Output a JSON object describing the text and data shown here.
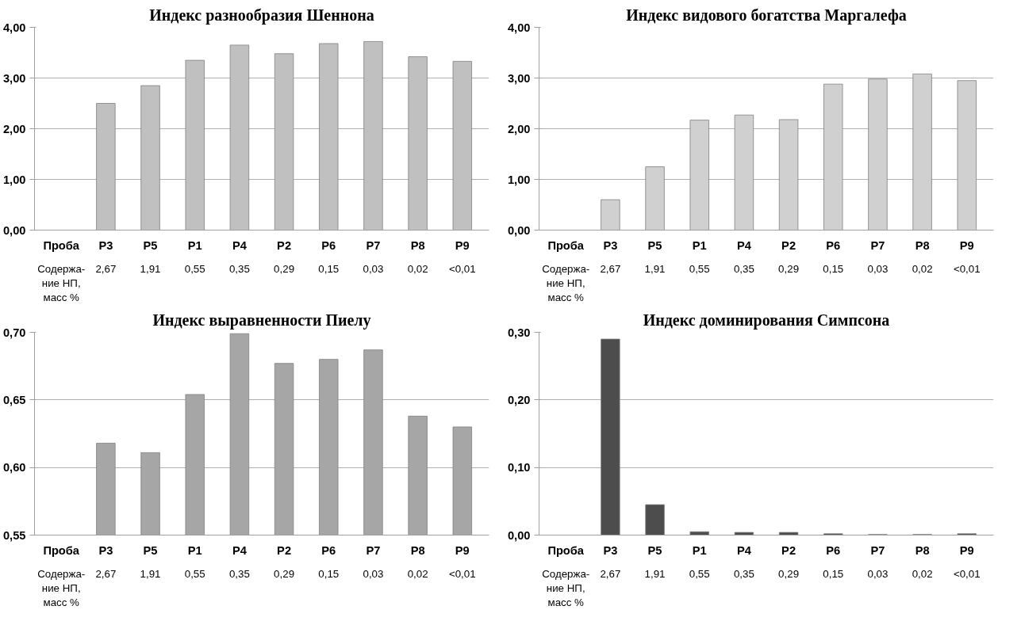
{
  "chart_data": [
    {
      "type": "bar",
      "title": "Индекс разнообразия Шеннона",
      "xlabel": "Проба",
      "categories": [
        "P3",
        "P5",
        "P1",
        "P4",
        "P2",
        "P6",
        "P7",
        "P8",
        "P9"
      ],
      "color": "#c0c0c0",
      "values": [
        2.5,
        2.85,
        3.35,
        3.65,
        3.48,
        3.68,
        3.72,
        3.42,
        3.33
      ],
      "ylim": [
        0,
        4
      ],
      "yticks": [
        {
          "value": 0,
          "label": "0,00"
        },
        {
          "value": 1,
          "label": "1,00"
        },
        {
          "value": 2,
          "label": "2,00"
        },
        {
          "value": 3,
          "label": "3,00"
        },
        {
          "value": 4,
          "label": "4,00"
        }
      ],
      "grid": "y",
      "legend": false,
      "annotations": [
        "Содержа-\nние НП,\nмасс %",
        "2,67",
        "1,91",
        "0,55",
        "0,35",
        "0,29",
        "0,15",
        "0,03",
        "0,02",
        "<0,01"
      ]
    },
    {
      "type": "bar",
      "title": "Индекс видового богатства Маргалефа",
      "xlabel": "Проба",
      "categories": [
        "P3",
        "P5",
        "P1",
        "P4",
        "P2",
        "P6",
        "P7",
        "P8",
        "P9"
      ],
      "color": "#d0d0d0",
      "values": [
        0.6,
        1.25,
        2.17,
        2.27,
        2.18,
        2.88,
        2.98,
        3.08,
        2.95
      ],
      "ylim": [
        0,
        4
      ],
      "yticks": [
        {
          "value": 0,
          "label": "0,00"
        },
        {
          "value": 1,
          "label": "1,00"
        },
        {
          "value": 2,
          "label": "2,00"
        },
        {
          "value": 3,
          "label": "3,00"
        },
        {
          "value": 4,
          "label": "4,00"
        }
      ],
      "grid": "y",
      "legend": false,
      "annotations": [
        "Содержа-\nние НП,\nмасс %",
        "2,67",
        "1,91",
        "0,55",
        "0,35",
        "0,29",
        "0,15",
        "0,03",
        "0,02",
        "<0,01"
      ]
    },
    {
      "type": "bar",
      "title": "Индекс выравненности Пиелу",
      "xlabel": "Проба",
      "categories": [
        "P3",
        "P5",
        "P1",
        "P4",
        "P2",
        "P6",
        "P7",
        "P8",
        "P9"
      ],
      "color": "#a6a6a6",
      "values": [
        0.618,
        0.611,
        0.654,
        0.699,
        0.677,
        0.68,
        0.687,
        0.638,
        0.63
      ],
      "ylim": [
        0.55,
        0.7
      ],
      "yticks": [
        {
          "value": 0.55,
          "label": "0,55"
        },
        {
          "value": 0.6,
          "label": "0,60"
        },
        {
          "value": 0.65,
          "label": "0,65"
        },
        {
          "value": 0.7,
          "label": "0,70"
        }
      ],
      "grid": "y",
      "legend": false,
      "annotations": [
        "Содержа-\nние НП,\nмасс %",
        "2,67",
        "1,91",
        "0,55",
        "0,35",
        "0,29",
        "0,15",
        "0,03",
        "0,02",
        "<0,01"
      ]
    },
    {
      "type": "bar",
      "title": "Индекс доминирования Симпсона",
      "xlabel": "Проба",
      "categories": [
        "P3",
        "P5",
        "P1",
        "P4",
        "P2",
        "P6",
        "P7",
        "P8",
        "P9"
      ],
      "color": "#4d4d4d",
      "values": [
        0.29,
        0.045,
        0.005,
        0.004,
        0.004,
        0.002,
        0.001,
        0.001,
        0.002
      ],
      "ylim": [
        0,
        0.3
      ],
      "yticks": [
        {
          "value": 0,
          "label": "0,00"
        },
        {
          "value": 0.1,
          "label": "0,10"
        },
        {
          "value": 0.2,
          "label": "0,20"
        },
        {
          "value": 0.3,
          "label": "0,30"
        }
      ],
      "grid": "y",
      "legend": false,
      "annotations": [
        "Содержа-\nние НП,\nмасс %",
        "2,67",
        "1,91",
        "0,55",
        "0,35",
        "0,29",
        "0,15",
        "0,03",
        "0,02",
        "<0,01"
      ]
    }
  ]
}
